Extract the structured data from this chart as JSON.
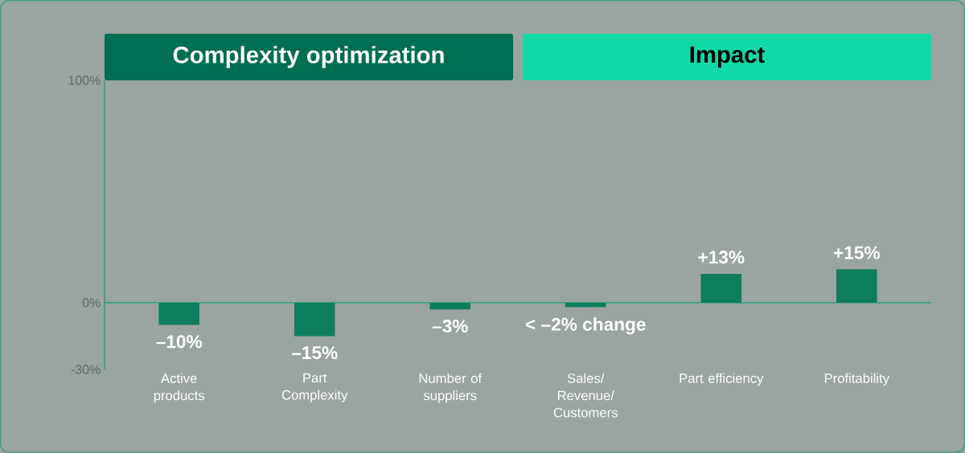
{
  "chart_data": {
    "type": "bar",
    "categories": [
      "Active products",
      "Part Complexity",
      "Number of suppliers",
      "Sales/ Revenue/ Customers",
      "Part efficiency",
      "Profitability"
    ],
    "values": [
      -10,
      -15,
      -3,
      -2,
      13,
      15
    ],
    "value_labels": [
      "–10%",
      "–15%",
      "–3%",
      "< –2% change",
      "+13%",
      "+15%"
    ],
    "color": "#0e7d5e",
    "ylim": [
      -30,
      100
    ],
    "yticks": [
      {
        "value": 100,
        "label": "100%"
      },
      {
        "value": 0,
        "label": "0%"
      },
      {
        "value": -30,
        "label": "-30%"
      }
    ],
    "annotations": [
      "Complexity optimization",
      "Impact"
    ],
    "ref_lines": [
      {
        "axis": "y",
        "value": 0,
        "color": "#1a9e7a"
      }
    ],
    "grid": false
  }
}
